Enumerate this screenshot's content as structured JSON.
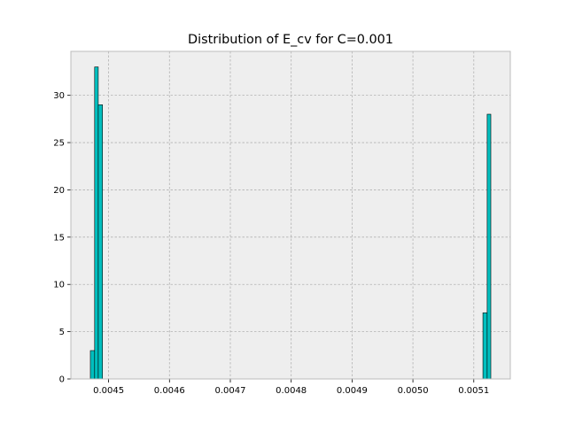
{
  "chart_data": {
    "type": "bar",
    "title": "Distribution of E_cv for C=0.001",
    "xlabel": "",
    "ylabel": "",
    "xlim": [
      0.004438,
      0.00516
    ],
    "ylim": [
      0,
      34.65
    ],
    "grid": true,
    "bar_color": "#00bfbf",
    "bar_edge_color": "#000000",
    "plot_background": "#eeeeee",
    "x_ticks": [
      {
        "value": 0.0045,
        "label": "0.0045"
      },
      {
        "value": 0.0046,
        "label": "0.0046"
      },
      {
        "value": 0.0047,
        "label": "0.0047"
      },
      {
        "value": 0.0048,
        "label": "0.0048"
      },
      {
        "value": 0.0049,
        "label": "0.0049"
      },
      {
        "value": 0.005,
        "label": "0.0050"
      },
      {
        "value": 0.0051,
        "label": "0.0051"
      }
    ],
    "y_ticks": [
      {
        "value": 0,
        "label": "0"
      },
      {
        "value": 5,
        "label": "5"
      },
      {
        "value": 10,
        "label": "10"
      },
      {
        "value": 15,
        "label": "15"
      },
      {
        "value": 20,
        "label": "20"
      },
      {
        "value": 25,
        "label": "25"
      },
      {
        "value": 30,
        "label": "30"
      }
    ],
    "bins": [
      {
        "x0": 0.00447,
        "x1": 0.004477,
        "count": 3
      },
      {
        "x0": 0.004477,
        "x1": 0.004483,
        "count": 33
      },
      {
        "x0": 0.004483,
        "x1": 0.00449,
        "count": 29
      },
      {
        "x0": 0.005115,
        "x1": 0.005122,
        "count": 7
      },
      {
        "x0": 0.005122,
        "x1": 0.005128,
        "count": 28
      }
    ]
  }
}
